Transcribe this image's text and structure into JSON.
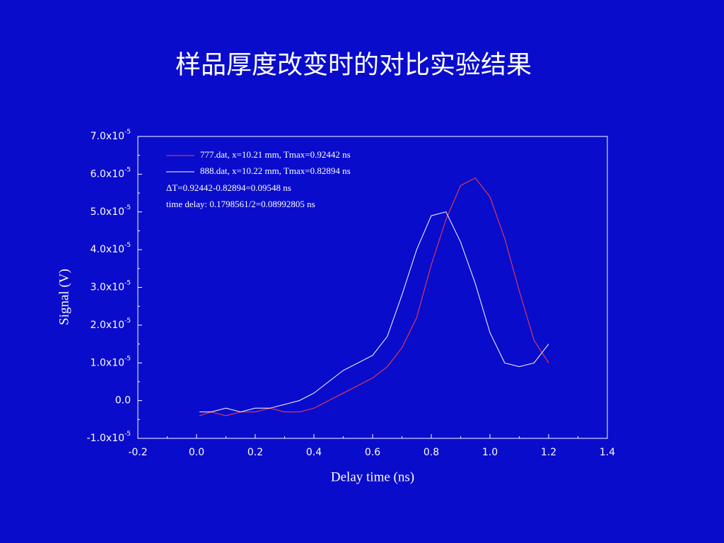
{
  "chart_data": {
    "type": "line",
    "title": "样品厚度改变时的对比实验结果",
    "xlabel": "Delay time (ns)",
    "ylabel": "Signal (V)",
    "x": [
      0.01,
      0.05,
      0.1,
      0.15,
      0.2,
      0.25,
      0.3,
      0.35,
      0.4,
      0.45,
      0.5,
      0.55,
      0.6,
      0.65,
      0.7,
      0.75,
      0.8,
      0.85,
      0.9,
      0.95,
      1.0,
      1.05,
      1.1,
      1.15,
      1.2
    ],
    "series": [
      {
        "name": "777.dat, x=10.21 mm, Tmax=0.92442 ns",
        "color": "#ff4040",
        "values": [
          -4e-06,
          -3e-06,
          -4e-06,
          -3e-06,
          -3e-06,
          -2e-06,
          -3e-06,
          -3e-06,
          -2e-06,
          0,
          2e-06,
          4e-06,
          6e-06,
          9e-06,
          1.4e-05,
          2.2e-05,
          3.6e-05,
          4.8e-05,
          5.7e-05,
          5.9e-05,
          5.4e-05,
          4.3e-05,
          2.9e-05,
          1.6e-05,
          1e-05
        ]
      },
      {
        "name": "888.dat, x=10.22 mm, Tmax=0.82894 ns",
        "color": "#ffffff",
        "values": [
          -3e-06,
          -3e-06,
          -2e-06,
          -3e-06,
          -2e-06,
          -2e-06,
          -1e-06,
          0,
          2e-06,
          5e-06,
          8e-06,
          1e-05,
          1.2e-05,
          1.7e-05,
          2.8e-05,
          4e-05,
          4.9e-05,
          5e-05,
          4.2e-05,
          3.1e-05,
          1.8e-05,
          1e-05,
          9e-06,
          1e-05,
          1.5e-05
        ]
      }
    ],
    "annotations": [
      "ΔT=0.92442-0.82894=0.09548 ns",
      "time delay: 0.1798561/2=0.08992805 ns"
    ],
    "xlim": [
      -0.2,
      1.4
    ],
    "xticks": [
      -0.2,
      {
        "value": 0,
        "label": "0.0"
      },
      0.2,
      0.4,
      0.6,
      0.8,
      {
        "value": 1,
        "label": "1.0"
      },
      1.2,
      1.4
    ],
    "ylim": [
      -1e-05,
      7e-05
    ],
    "yticks": [
      {
        "value": -1e-05,
        "label": "-1.0x10",
        "exponent": "-5"
      },
      {
        "value": 0,
        "label": "0.0"
      },
      {
        "value": 1e-05,
        "label": "1.0x10",
        "exponent": "-5"
      },
      {
        "value": 2e-05,
        "label": "2.0x10",
        "exponent": "-5"
      },
      {
        "value": 3e-05,
        "label": "3.0x10",
        "exponent": "-5"
      },
      {
        "value": 4e-05,
        "label": "4.0x10",
        "exponent": "-5"
      },
      {
        "value": 5e-05,
        "label": "5.0x10",
        "exponent": "-5"
      },
      {
        "value": 6e-05,
        "label": "6.0x10",
        "exponent": "-5"
      },
      {
        "value": 7e-05,
        "label": "7.0x10",
        "exponent": "-5"
      }
    ],
    "grid": false
  }
}
